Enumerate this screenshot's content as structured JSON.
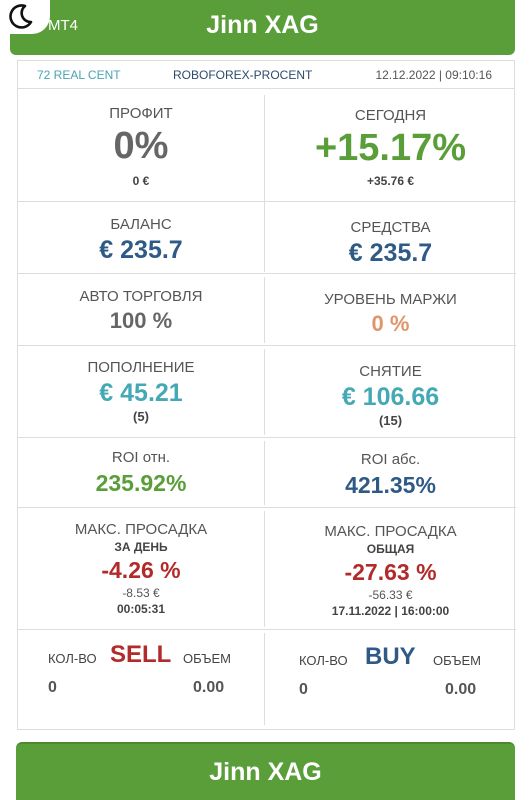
{
  "header": {
    "platform": "MT4",
    "title": "Jinn XAG"
  },
  "info": {
    "account": "72 REAL CENT",
    "broker": "ROBOFOREX-PROCENT",
    "datetime": "12.12.2022 | 09:10:16"
  },
  "profit": {
    "label": "ПРОФИТ",
    "value": "0%",
    "sub": "0 €"
  },
  "today": {
    "label": "СЕГОДНЯ",
    "value": "+15.17%",
    "sub": "+35.76 €"
  },
  "balance": {
    "label": "БАЛАНС",
    "value": "€ 235.7"
  },
  "equity": {
    "label": "СРЕДСТВА",
    "value": "€ 235.7"
  },
  "autotrading": {
    "label": "АВТО ТОРГОВЛЯ",
    "value": "100 %"
  },
  "margin_level": {
    "label": "УРОВЕНЬ МАРЖИ",
    "value": "0 %"
  },
  "deposit": {
    "label": "ПОПОЛНЕНИЕ",
    "value": "€ 45.21",
    "count": "(5)"
  },
  "withdrawal": {
    "label": "СНЯТИЕ",
    "value": "€ 106.66",
    "count": "(15)"
  },
  "roi_rel": {
    "label": "ROI отн.",
    "value": "235.92%"
  },
  "roi_abs": {
    "label": "ROI абс.",
    "value": "421.35%"
  },
  "dd_day": {
    "label": "МАКС. ПРОСАДКА",
    "period": "ЗА ДЕНЬ",
    "value": "-4.26 %",
    "amount": "-8.53 €",
    "time": "00:05:31"
  },
  "dd_total": {
    "label": "МАКС. ПРОСАДКА",
    "period": "ОБЩАЯ",
    "value": "-27.63 %",
    "amount": "-56.33 €",
    "time": "17.11.2022 | 16:00:00"
  },
  "sell": {
    "qty_label": "КОЛ-ВО",
    "side": "SELL",
    "volume_label": "ОБЪЕМ",
    "qty": "0",
    "volume": "0.00"
  },
  "buy": {
    "qty_label": "КОЛ-ВО",
    "side": "BUY",
    "volume_label": "ОБЪЕМ",
    "qty": "0",
    "volume": "0.00"
  },
  "footer": {
    "button": "Jinn XAG"
  },
  "colors": {
    "header_green": "#5a9e3a",
    "positive": "#5a9e3a",
    "blue": "#2e5a85",
    "teal": "#45a9b5",
    "orange": "#e0956a",
    "negative": "#b22a2a"
  },
  "icons": {
    "theme_toggle": "crescent-moon-icon"
  }
}
